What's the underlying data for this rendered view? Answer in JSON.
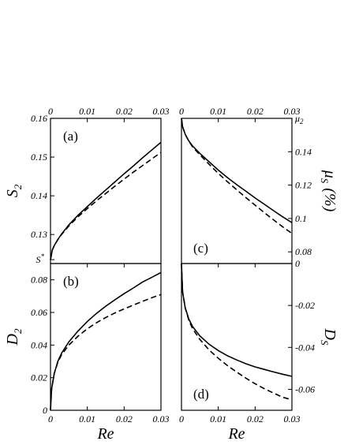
{
  "chart_data": [
    {
      "type": "line",
      "panel": "(a)",
      "xlim": [
        0,
        0.03
      ],
      "ylim": [
        0.1225,
        0.16
      ],
      "xticks": [
        "0",
        "0.01",
        "0.02",
        "0.03"
      ],
      "yticks": [
        "0.13",
        "0.14",
        "0.15",
        "0.16"
      ],
      "ylabel": "S",
      "ylabel_sub": "2",
      "extra_tick": {
        "label": "S",
        "sup": "*",
        "value": 0.1235
      },
      "series": [
        {
          "style": "solid",
          "x": [
            0,
            0.0005,
            0.001,
            0.002,
            0.003,
            0.005,
            0.0075,
            0.01,
            0.0125,
            0.015,
            0.0175,
            0.02,
            0.0225,
            0.025,
            0.0275,
            0.03
          ],
          "y": [
            0.1235,
            0.126,
            0.1271,
            0.1287,
            0.1301,
            0.1325,
            0.135,
            0.1372,
            0.1394,
            0.1415,
            0.1436,
            0.1457,
            0.1477,
            0.1498,
            0.1518,
            0.1538
          ]
        },
        {
          "style": "dashed",
          "x": [
            0,
            0.0005,
            0.001,
            0.002,
            0.003,
            0.005,
            0.0075,
            0.01,
            0.0125,
            0.015,
            0.0175,
            0.02,
            0.0225,
            0.025,
            0.0275,
            0.03
          ],
          "y": [
            0.1235,
            0.126,
            0.1271,
            0.1287,
            0.13,
            0.1322,
            0.1346,
            0.1367,
            0.1387,
            0.1406,
            0.1425,
            0.1443,
            0.1461,
            0.1478,
            0.1495,
            0.1512
          ]
        }
      ]
    },
    {
      "type": "line",
      "panel": "(b)",
      "xlim": [
        0,
        0.03
      ],
      "ylim": [
        0,
        0.09
      ],
      "xticks": [
        "0",
        "0.01",
        "0.02",
        "0.03"
      ],
      "yticks": [
        "0",
        "0.02",
        "0.04",
        "0.06",
        "0.08"
      ],
      "xlabel": "Re",
      "ylabel": "D",
      "ylabel_sub": "2",
      "series": [
        {
          "style": "solid",
          "x": [
            0,
            0.0003,
            0.001,
            0.002,
            0.003,
            0.005,
            0.0075,
            0.01,
            0.0125,
            0.015,
            0.0175,
            0.02,
            0.0225,
            0.025,
            0.0275,
            0.03
          ],
          "y": [
            0,
            0.013,
            0.0225,
            0.03,
            0.035,
            0.042,
            0.0487,
            0.0545,
            0.0594,
            0.0638,
            0.0678,
            0.0715,
            0.075,
            0.0787,
            0.0815,
            0.0845
          ]
        },
        {
          "style": "dashed",
          "x": [
            0,
            0.0003,
            0.001,
            0.002,
            0.003,
            0.005,
            0.0075,
            0.01,
            0.0125,
            0.015,
            0.0175,
            0.02,
            0.0225,
            0.025,
            0.0275,
            0.03
          ],
          "y": [
            0,
            0.013,
            0.0225,
            0.0295,
            0.034,
            0.04,
            0.0455,
            0.05,
            0.0537,
            0.0569,
            0.0597,
            0.0622,
            0.0645,
            0.0668,
            0.069,
            0.071
          ]
        }
      ]
    },
    {
      "type": "line",
      "panel": "(c)",
      "xlim": [
        0,
        0.03
      ],
      "ylim": [
        0.073,
        0.16
      ],
      "xticks": [
        "0",
        "0.01",
        "0.02",
        "0.03"
      ],
      "yticks": [
        "0.08",
        "0.1",
        "0.12",
        "0.14"
      ],
      "ylabel": "μ",
      "ylabel_sub": "S",
      "ylabel_unit": "(%)",
      "extra_tick": {
        "label": "μ",
        "sub": "2",
        "value": 0.16
      },
      "series": [
        {
          "style": "solid",
          "x": [
            0,
            0.0003,
            0.001,
            0.002,
            0.003,
            0.005,
            0.0075,
            0.01,
            0.0125,
            0.015,
            0.0175,
            0.02,
            0.0225,
            0.025,
            0.0275,
            0.03
          ],
          "y": [
            0.16,
            0.155,
            0.1505,
            0.1465,
            0.1435,
            0.139,
            0.134,
            0.129,
            0.1245,
            0.1203,
            0.1163,
            0.1123,
            0.1085,
            0.1047,
            0.101,
            0.0975
          ]
        },
        {
          "style": "dashed",
          "x": [
            0,
            0.0003,
            0.001,
            0.002,
            0.003,
            0.005,
            0.0075,
            0.01,
            0.0125,
            0.015,
            0.0175,
            0.02,
            0.0225,
            0.025,
            0.0275,
            0.03
          ],
          "y": [
            0.16,
            0.155,
            0.1505,
            0.1463,
            0.143,
            0.1382,
            0.1325,
            0.127,
            0.122,
            0.1172,
            0.1125,
            0.108,
            0.1035,
            0.0992,
            0.095,
            0.091
          ]
        }
      ]
    },
    {
      "type": "line",
      "panel": "(d)",
      "xlim": [
        0,
        0.03
      ],
      "ylim": [
        -0.07,
        0
      ],
      "xticks": [
        "0",
        "0.01",
        "0.02",
        "0.03"
      ],
      "yticks": [
        "0",
        "-0.02",
        "-0.04",
        "-0.06"
      ],
      "xlabel": "Re",
      "ylabel": "D",
      "ylabel_sub": "S",
      "series": [
        {
          "style": "solid",
          "x": [
            0,
            0.0003,
            0.001,
            0.002,
            0.003,
            0.005,
            0.0075,
            0.01,
            0.0125,
            0.015,
            0.0175,
            0.02,
            0.0225,
            0.025,
            0.0275,
            0.03
          ],
          "y": [
            0,
            -0.0135,
            -0.021,
            -0.0265,
            -0.03,
            -0.0345,
            -0.0385,
            -0.0415,
            -0.044,
            -0.046,
            -0.0478,
            -0.0493,
            -0.0505,
            -0.0517,
            -0.0528,
            -0.0538
          ]
        },
        {
          "style": "dashed",
          "x": [
            0,
            0.0003,
            0.001,
            0.002,
            0.003,
            0.005,
            0.0075,
            0.01,
            0.0125,
            0.015,
            0.0175,
            0.02,
            0.0225,
            0.025,
            0.0275,
            0.03
          ],
          "y": [
            0,
            -0.0135,
            -0.0212,
            -0.027,
            -0.031,
            -0.0362,
            -0.0412,
            -0.0452,
            -0.0487,
            -0.0518,
            -0.0547,
            -0.0573,
            -0.0597,
            -0.0618,
            -0.0638,
            -0.065
          ]
        }
      ]
    }
  ]
}
